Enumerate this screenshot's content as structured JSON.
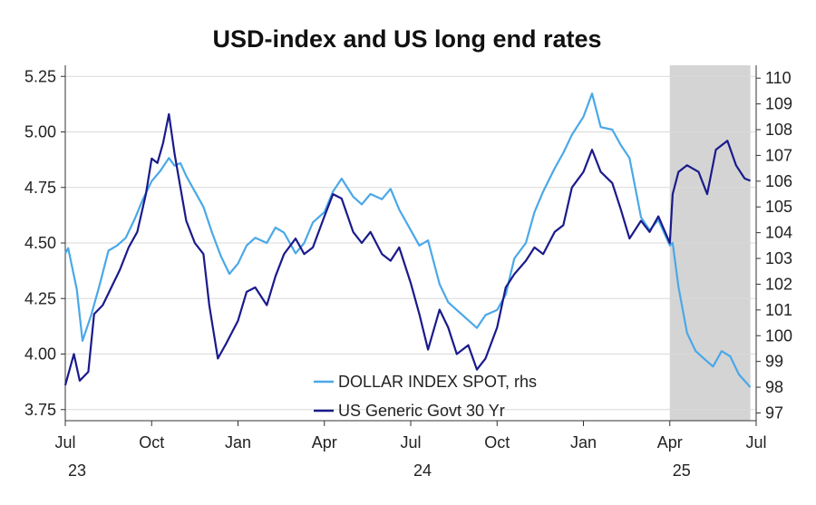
{
  "chart_data": {
    "type": "line",
    "title": "USD-index and US long end rates",
    "x_tick_labels": [
      "Jul",
      "Oct",
      "Jan",
      "Apr",
      "Jul",
      "Oct",
      "Jan",
      "Apr",
      "Jul"
    ],
    "x_year_labels": [
      {
        "label": "23",
        "month_index": 0
      },
      {
        "label": "24",
        "month_index": 12
      },
      {
        "label": "25",
        "month_index": 21
      }
    ],
    "x_range_months": [
      0,
      24
    ],
    "left_axis": {
      "ylim": [
        3.7,
        5.3
      ],
      "ticks": [
        "3.75",
        "4.00",
        "4.25",
        "4.50",
        "4.75",
        "5.00",
        "5.25"
      ]
    },
    "right_axis": {
      "ylim": [
        96.7,
        110.5
      ],
      "ticks": [
        "97",
        "98",
        "99",
        "100",
        "101",
        "102",
        "103",
        "104",
        "105",
        "106",
        "107",
        "108",
        "109",
        "110"
      ]
    },
    "shaded_period_months": [
      21,
      23.8
    ],
    "colors": {
      "shade": "#d4d4d4",
      "grid": "#d9d9d9",
      "axis": "#333333"
    },
    "legend": [
      {
        "label": "DOLLAR INDEX SPOT, rhs",
        "color": "#4aa8e8"
      },
      {
        "label": "US Generic Govt 30 Yr",
        "color": "#1a1a8c"
      }
    ],
    "series": [
      {
        "name": "US Generic Govt 30 Yr",
        "axis": "left",
        "color": "#1a1a8c",
        "x": [
          0,
          0.3,
          0.5,
          0.8,
          1.0,
          1.3,
          1.6,
          1.9,
          2.2,
          2.5,
          2.8,
          3.0,
          3.2,
          3.4,
          3.6,
          3.8,
          4.0,
          4.2,
          4.5,
          4.8,
          5.0,
          5.3,
          5.6,
          6.0,
          6.3,
          6.6,
          7.0,
          7.3,
          7.6,
          8.0,
          8.3,
          8.6,
          9.0,
          9.3,
          9.6,
          10.0,
          10.3,
          10.6,
          11.0,
          11.3,
          11.6,
          12.0,
          12.3,
          12.6,
          13.0,
          13.3,
          13.6,
          14.0,
          14.3,
          14.6,
          15.0,
          15.3,
          15.6,
          16.0,
          16.3,
          16.6,
          17.0,
          17.3,
          17.6,
          18.0,
          18.3,
          18.6,
          19.0,
          19.3,
          19.6,
          20.0,
          20.3,
          20.6,
          21.0,
          21.1,
          21.3,
          21.6,
          22.0,
          22.3,
          22.6,
          23.0,
          23.3,
          23.6,
          23.8
        ],
        "values": [
          3.86,
          4.0,
          3.88,
          3.92,
          4.18,
          4.22,
          4.3,
          4.38,
          4.48,
          4.55,
          4.72,
          4.88,
          4.86,
          4.95,
          5.08,
          4.9,
          4.75,
          4.6,
          4.5,
          4.45,
          4.22,
          3.98,
          4.05,
          4.15,
          4.28,
          4.3,
          4.22,
          4.35,
          4.45,
          4.52,
          4.45,
          4.48,
          4.62,
          4.72,
          4.7,
          4.55,
          4.5,
          4.55,
          4.45,
          4.42,
          4.48,
          4.32,
          4.18,
          4.02,
          4.2,
          4.12,
          4.0,
          4.04,
          3.93,
          3.98,
          4.12,
          4.3,
          4.36,
          4.42,
          4.48,
          4.45,
          4.55,
          4.58,
          4.75,
          4.82,
          4.92,
          4.82,
          4.77,
          4.65,
          4.52,
          4.6,
          4.55,
          4.62,
          4.5,
          4.72,
          4.82,
          4.85,
          4.82,
          4.72,
          4.92,
          4.96,
          4.85,
          4.79,
          4.78
        ]
      },
      {
        "name": "DOLLAR INDEX SPOT",
        "axis": "right",
        "color": "#4aa8e8",
        "x": [
          0,
          0.1,
          0.4,
          0.6,
          0.9,
          1.2,
          1.5,
          1.8,
          2.1,
          2.4,
          2.7,
          3.0,
          3.3,
          3.6,
          3.8,
          4.0,
          4.2,
          4.5,
          4.8,
          5.1,
          5.4,
          5.7,
          6.0,
          6.3,
          6.6,
          7.0,
          7.3,
          7.6,
          8.0,
          8.3,
          8.6,
          9.0,
          9.3,
          9.6,
          10.0,
          10.3,
          10.6,
          11.0,
          11.3,
          11.6,
          12.0,
          12.3,
          12.6,
          13.0,
          13.3,
          13.6,
          14.0,
          14.3,
          14.6,
          15.0,
          15.3,
          15.6,
          16.0,
          16.3,
          16.6,
          17.0,
          17.3,
          17.6,
          18.0,
          18.3,
          18.6,
          19.0,
          19.3,
          19.6,
          20.0,
          20.3,
          20.6,
          21.0,
          21.1,
          21.3,
          21.6,
          21.9,
          22.2,
          22.5,
          22.8,
          23.1,
          23.4,
          23.8
        ],
        "values": [
          103.2,
          103.4,
          101.8,
          99.8,
          100.8,
          102.0,
          103.3,
          103.5,
          103.8,
          104.5,
          105.3,
          106.0,
          106.4,
          106.9,
          106.6,
          106.7,
          106.2,
          105.6,
          105.0,
          104.0,
          103.1,
          102.4,
          102.8,
          103.5,
          103.8,
          103.6,
          104.2,
          104.0,
          103.2,
          103.6,
          104.4,
          104.8,
          105.6,
          106.1,
          105.4,
          105.1,
          105.5,
          105.3,
          105.7,
          104.9,
          104.1,
          103.5,
          103.7,
          102.0,
          101.3,
          101.0,
          100.6,
          100.3,
          100.8,
          101.0,
          101.6,
          103.0,
          103.6,
          104.8,
          105.6,
          106.5,
          107.1,
          107.8,
          108.5,
          109.4,
          108.1,
          108.0,
          107.4,
          106.9,
          104.6,
          104.1,
          104.5,
          103.5,
          103.6,
          101.9,
          100.1,
          99.4,
          99.1,
          98.8,
          99.4,
          99.2,
          98.5,
          98.0
        ]
      }
    ]
  }
}
